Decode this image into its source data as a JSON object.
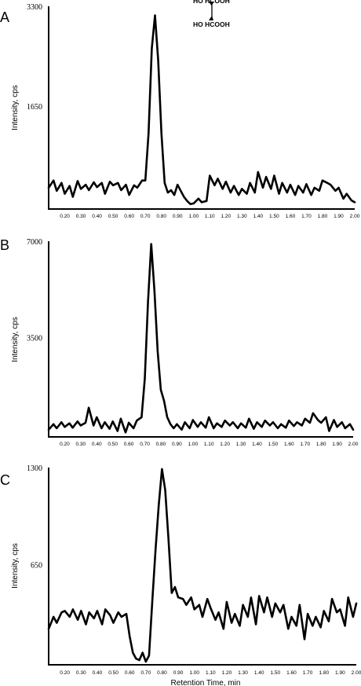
{
  "chart_data": [
    {
      "type": "line",
      "panel": "A",
      "ylabel": "Intensity, cps",
      "xlabel": "",
      "xlim": [
        0.1,
        2.0
      ],
      "ylim": [
        0,
        3300
      ],
      "yticks": [
        "3300",
        "1650"
      ],
      "ytick_values": [
        3300,
        1650
      ],
      "xticks": [
        "0.20",
        "0.30",
        "0.40",
        "0.50",
        "0.60",
        "0.70",
        "0.80",
        "0.90",
        "1.00",
        "1.10",
        "1.20",
        "1.30",
        "1.40",
        "1.50",
        "1.60",
        "1.70",
        "1.80",
        "1.90",
        "2.00"
      ],
      "series": [
        {
          "x": [
            0.1,
            0.13,
            0.15,
            0.18,
            0.2,
            0.23,
            0.25,
            0.28,
            0.3,
            0.33,
            0.35,
            0.38,
            0.4,
            0.43,
            0.45,
            0.48,
            0.5,
            0.53,
            0.55,
            0.58,
            0.6,
            0.63,
            0.65,
            0.68,
            0.7,
            0.72,
            0.74,
            0.76,
            0.78,
            0.8,
            0.82,
            0.84,
            0.86,
            0.88,
            0.9,
            0.92,
            0.94,
            0.96,
            0.98,
            1.0,
            1.03,
            1.05,
            1.08,
            1.1,
            1.13,
            1.15,
            1.18,
            1.2,
            1.23,
            1.25,
            1.28,
            1.3,
            1.33,
            1.35,
            1.38,
            1.4,
            1.43,
            1.45,
            1.48,
            1.5,
            1.53,
            1.55,
            1.58,
            1.6,
            1.63,
            1.65,
            1.68,
            1.7,
            1.73,
            1.75,
            1.78,
            1.8,
            1.83,
            1.85,
            1.88,
            1.9,
            1.93,
            1.95,
            1.98,
            2.0
          ],
          "y": [
            300,
            420,
            250,
            380,
            200,
            330,
            150,
            410,
            280,
            350,
            260,
            390,
            310,
            380,
            200,
            400,
            340,
            380,
            260,
            350,
            180,
            340,
            300,
            420,
            420,
            1200,
            2600,
            3150,
            2400,
            1200,
            380,
            220,
            260,
            180,
            350,
            250,
            150,
            80,
            30,
            40,
            120,
            60,
            80,
            500,
            340,
            450,
            280,
            400,
            220,
            330,
            180,
            280,
            200,
            380,
            220,
            560,
            300,
            480,
            280,
            500,
            200,
            380,
            220,
            350,
            180,
            330,
            220,
            360,
            180,
            300,
            250,
            420,
            380,
            350,
            250,
            300,
            120,
            200,
            90,
            60
          ]
        }
      ]
    },
    {
      "type": "line",
      "panel": "B",
      "ylabel": "Intensity, cps",
      "xlabel": "",
      "xlim": [
        0.1,
        2.0
      ],
      "ylim": [
        0,
        7000
      ],
      "yticks": [
        "7000",
        "3500"
      ],
      "ytick_values": [
        7000,
        3500
      ],
      "xticks": [
        "0.20",
        "0.30",
        "0.40",
        "0.50",
        "0.60",
        "0.70",
        "0.80",
        "0.90",
        "1.00",
        "1.10",
        "1.20",
        "1.30",
        "1.40",
        "1.50",
        "1.60",
        "1.70",
        "1.80",
        "1.90",
        "2.00"
      ],
      "series": [
        {
          "x": [
            0.1,
            0.13,
            0.15,
            0.18,
            0.2,
            0.23,
            0.25,
            0.28,
            0.3,
            0.33,
            0.35,
            0.38,
            0.4,
            0.43,
            0.45,
            0.48,
            0.5,
            0.53,
            0.55,
            0.58,
            0.6,
            0.63,
            0.65,
            0.68,
            0.7,
            0.72,
            0.74,
            0.76,
            0.78,
            0.8,
            0.82,
            0.84,
            0.86,
            0.88,
            0.9,
            0.93,
            0.95,
            0.98,
            1.0,
            1.03,
            1.05,
            1.08,
            1.1,
            1.13,
            1.15,
            1.18,
            1.2,
            1.23,
            1.25,
            1.28,
            1.3,
            1.33,
            1.35,
            1.38,
            1.4,
            1.43,
            1.45,
            1.48,
            1.5,
            1.53,
            1.55,
            1.58,
            1.6,
            1.63,
            1.65,
            1.68,
            1.7,
            1.73,
            1.75,
            1.78,
            1.8,
            1.83,
            1.85,
            1.88,
            1.9,
            1.93,
            1.95,
            1.98,
            2.0
          ],
          "y": [
            150,
            350,
            200,
            420,
            250,
            380,
            220,
            450,
            300,
            400,
            950,
            300,
            600,
            200,
            420,
            180,
            450,
            100,
            550,
            50,
            400,
            200,
            480,
            600,
            2000,
            4800,
            6900,
            5200,
            3000,
            1600,
            1200,
            600,
            350,
            200,
            350,
            150,
            420,
            200,
            500,
            250,
            420,
            220,
            600,
            200,
            380,
            250,
            480,
            300,
            420,
            200,
            380,
            220,
            550,
            180,
            420,
            250,
            480,
            300,
            420,
            200,
            350,
            220,
            480,
            280,
            420,
            300,
            550,
            400,
            750,
            500,
            400,
            600,
            100,
            500,
            250,
            420,
            200,
            350,
            150
          ]
        }
      ]
    },
    {
      "type": "line",
      "panel": "C",
      "ylabel": "Intensity, cps",
      "xlabel": "Retention Time, min",
      "xlim": [
        0.1,
        2.0
      ],
      "ylim": [
        0,
        1300
      ],
      "yticks": [
        "1300",
        "650"
      ],
      "ytick_values": [
        1300,
        650
      ],
      "xticks": [
        "0.20",
        "0.30",
        "0.40",
        "0.50",
        "0.60",
        "0.70",
        "0.80",
        "0.90",
        "1.00",
        "1.10",
        "1.20",
        "1.30",
        "1.40",
        "1.50",
        "1.60",
        "1.70",
        "1.80",
        "1.90",
        "2.00"
      ],
      "series": [
        {
          "x": [
            0.1,
            0.13,
            0.15,
            0.18,
            0.2,
            0.23,
            0.25,
            0.28,
            0.3,
            0.33,
            0.35,
            0.38,
            0.4,
            0.43,
            0.45,
            0.48,
            0.5,
            0.53,
            0.55,
            0.58,
            0.6,
            0.62,
            0.64,
            0.66,
            0.68,
            0.7,
            0.72,
            0.74,
            0.76,
            0.78,
            0.8,
            0.82,
            0.84,
            0.86,
            0.88,
            0.9,
            0.93,
            0.95,
            0.98,
            1.0,
            1.03,
            1.05,
            1.08,
            1.1,
            1.13,
            1.15,
            1.18,
            1.2,
            1.23,
            1.25,
            1.28,
            1.3,
            1.33,
            1.35,
            1.38,
            1.4,
            1.43,
            1.45,
            1.48,
            1.5,
            1.53,
            1.55,
            1.58,
            1.6,
            1.63,
            1.65,
            1.68,
            1.7,
            1.73,
            1.75,
            1.78,
            1.8,
            1.83,
            1.85,
            1.88,
            1.9,
            1.93,
            1.95,
            1.98,
            2.0
          ],
          "y": [
            220,
            300,
            260,
            330,
            340,
            300,
            350,
            280,
            340,
            250,
            330,
            290,
            340,
            250,
            350,
            310,
            260,
            330,
            300,
            320,
            170,
            60,
            20,
            10,
            60,
            0,
            40,
            400,
            750,
            1050,
            1290,
            1150,
            820,
            460,
            500,
            430,
            420,
            380,
            430,
            350,
            380,
            300,
            420,
            360,
            280,
            330,
            220,
            400,
            260,
            320,
            240,
            380,
            300,
            430,
            250,
            440,
            330,
            430,
            300,
            390,
            330,
            380,
            220,
            300,
            240,
            380,
            150,
            320,
            240,
            300,
            230,
            340,
            270,
            420,
            330,
            350,
            240,
            430,
            300,
            390
          ]
        }
      ]
    }
  ],
  "panels": [
    {
      "letter": "A",
      "ylabel": "Intensity, cps",
      "yticks": [
        "3300",
        "1650"
      ]
    },
    {
      "letter": "B",
      "ylabel": "Intensity, cps",
      "yticks": [
        "7000",
        "3500"
      ]
    },
    {
      "letter": "C",
      "ylabel": "Intensity, cps",
      "yticks": [
        "1300",
        "650"
      ]
    }
  ],
  "xlabel": "Retention Time, min",
  "structure": {
    "top_line": "HO    HCOOH",
    "bottom_line": "HO    HCOOH"
  },
  "line_color": "#000000"
}
